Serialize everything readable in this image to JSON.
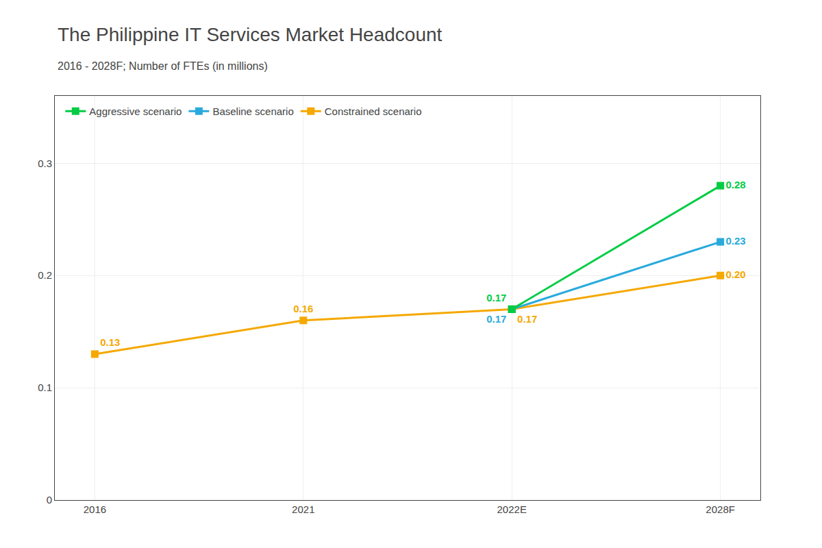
{
  "chart_data": {
    "type": "line",
    "title": "The Philippine IT Services Market Headcount",
    "subtitle": "2016 - 2028F; Number of FTEs (in millions)",
    "categories": [
      "2016",
      "2021",
      "2022E",
      "2028F"
    ],
    "series": [
      {
        "name": "Aggressive scenario",
        "color": "#00cc44",
        "marker": "square",
        "values": [
          null,
          null,
          0.17,
          0.28
        ],
        "value_labels": [
          null,
          null,
          "0.17",
          "0.28"
        ]
      },
      {
        "name": "Baseline scenario",
        "color": "#29aadc",
        "marker": "square",
        "values": [
          null,
          null,
          0.17,
          0.23
        ],
        "value_labels": [
          null,
          null,
          "0.17",
          "0.23"
        ]
      },
      {
        "name": "Constrained scenario",
        "color": "#f5a800",
        "marker": "square",
        "values": [
          0.13,
          0.16,
          0.17,
          0.2
        ],
        "value_labels": [
          "0.13",
          "0.16",
          "0.17",
          "0.20"
        ]
      }
    ],
    "ylim": [
      0,
      0.36
    ],
    "yticks": [
      0,
      0.1,
      0.2,
      0.3
    ],
    "grid": true,
    "legend": "upper left",
    "data_labels": true
  }
}
